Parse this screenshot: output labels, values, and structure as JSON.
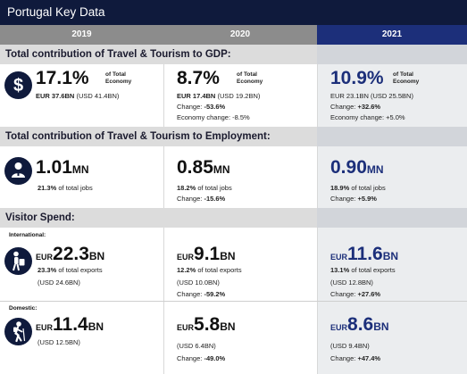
{
  "title": "Portugal Key Data",
  "years": [
    "2019",
    "2020",
    "2021"
  ],
  "sections": {
    "gdp": {
      "header": "Total contribution of Travel & Tourism to GDP:",
      "y2019": {
        "value": "17.1%",
        "of_total": "of Total",
        "economy": "Economy",
        "line1a": "EUR 37.6BN",
        "line1b": "(USD 41.4BN)"
      },
      "y2020": {
        "value": "8.7%",
        "of_total": "of Total",
        "economy": "Economy",
        "line1a": "EUR 17.4BN",
        "line1b": "(USD 19.2BN)",
        "change_label": "Change:",
        "change_value": "-53.6%",
        "econ_change": "Economy change: -8.5%"
      },
      "y2021": {
        "value": "10.9%",
        "of_total": "of Total",
        "economy": "Economy",
        "line1": "EUR 23.1BN (USD 25.5BN)",
        "change_label": "Change:",
        "change_value": "+32.6%",
        "econ_change": "Economy change: +5.0%"
      }
    },
    "employment": {
      "header": "Total contribution of Travel & Tourism to Employment:",
      "y2019": {
        "value": "1.01",
        "unit": "MN",
        "pct": "21.3%",
        "pct_label": "of total jobs"
      },
      "y2020": {
        "value": "0.85",
        "unit": "MN",
        "pct": "18.2%",
        "pct_label": "of total jobs",
        "change_label": "Change:",
        "change_value": "-15.6%"
      },
      "y2021": {
        "value": "0.90",
        "unit": "MN",
        "pct": "18.9%",
        "pct_label": "of total jobs",
        "change_label": "Change:",
        "change_value": "+5.9%"
      }
    },
    "visitor": {
      "header": "Visitor Spend:",
      "international": {
        "label": "International:",
        "y2019": {
          "prefix": "EUR",
          "value": "22.3",
          "unit": "BN",
          "pct": "23.3%",
          "pct_label": "of total exports",
          "usd": "(USD 24.6BN)"
        },
        "y2020": {
          "prefix": "EUR",
          "value": "9.1",
          "unit": "BN",
          "pct": "12.2%",
          "pct_label": "of total exports",
          "usd": "(USD 10.0BN)",
          "change_label": "Change:",
          "change_value": "-59.2%"
        },
        "y2021": {
          "prefix": "EUR",
          "value": "11.6",
          "unit": "BN",
          "pct": "13.1%",
          "pct_label": "of total exports",
          "usd": "(USD 12.8BN)",
          "change_label": "Change:",
          "change_value": "+27.6%"
        }
      },
      "domestic": {
        "label": "Domestic:",
        "y2019": {
          "prefix": "EUR",
          "value": "11.4",
          "unit": "BN",
          "usd": "(USD 12.5BN)"
        },
        "y2020": {
          "prefix": "EUR",
          "value": "5.8",
          "unit": "BN",
          "usd": "(USD 6.4BN)",
          "change_label": "Change:",
          "change_value": "-49.0%"
        },
        "y2021": {
          "prefix": "EUR",
          "value": "8.6",
          "unit": "BN",
          "usd": "(USD 9.4BN)",
          "change_label": "Change:",
          "change_value": "+47.4%"
        }
      }
    }
  },
  "icons": [
    "dollar-icon",
    "people-icon",
    "traveler-icon",
    "hiker-icon"
  ],
  "colors": {
    "navy": "#0f1a3c",
    "accent_blue": "#1c2f7a",
    "header_grey": "#8c8c8c",
    "section_band": "#dcdcdc",
    "col2021_bg": "#ebedef"
  }
}
